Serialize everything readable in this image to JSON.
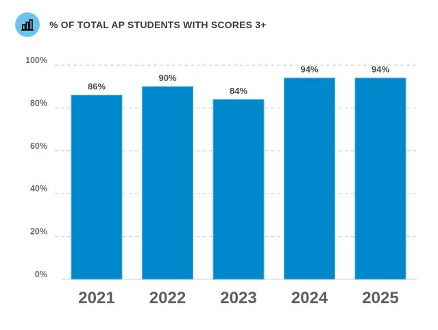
{
  "header": {
    "icon": "bar-chart-icon",
    "title": "% OF TOTAL AP STUDENTS WITH SCORES 3+"
  },
  "colors": {
    "bar": "#0088cc",
    "bar_edge": "#4fb3e6",
    "icon_bg": "#6cc4ea",
    "grid": "#d0d0d0"
  },
  "chart_data": {
    "type": "bar",
    "title": "% OF TOTAL AP STUDENTS WITH SCORES 3+",
    "categories": [
      "2021",
      "2022",
      "2023",
      "2024",
      "2025"
    ],
    "values": [
      86,
      90,
      84,
      94,
      94
    ],
    "data_labels": [
      "86%",
      "90%",
      "84%",
      "94%",
      "94%"
    ],
    "xlabel": "",
    "ylabel": "",
    "ylim": [
      0,
      100
    ],
    "yticks": [
      0,
      20,
      40,
      60,
      80,
      100
    ],
    "ytick_labels": [
      "0%",
      "20%",
      "40%",
      "60%",
      "80%",
      "100%"
    ],
    "grid": "horizontal-dashed",
    "legend": "none"
  }
}
